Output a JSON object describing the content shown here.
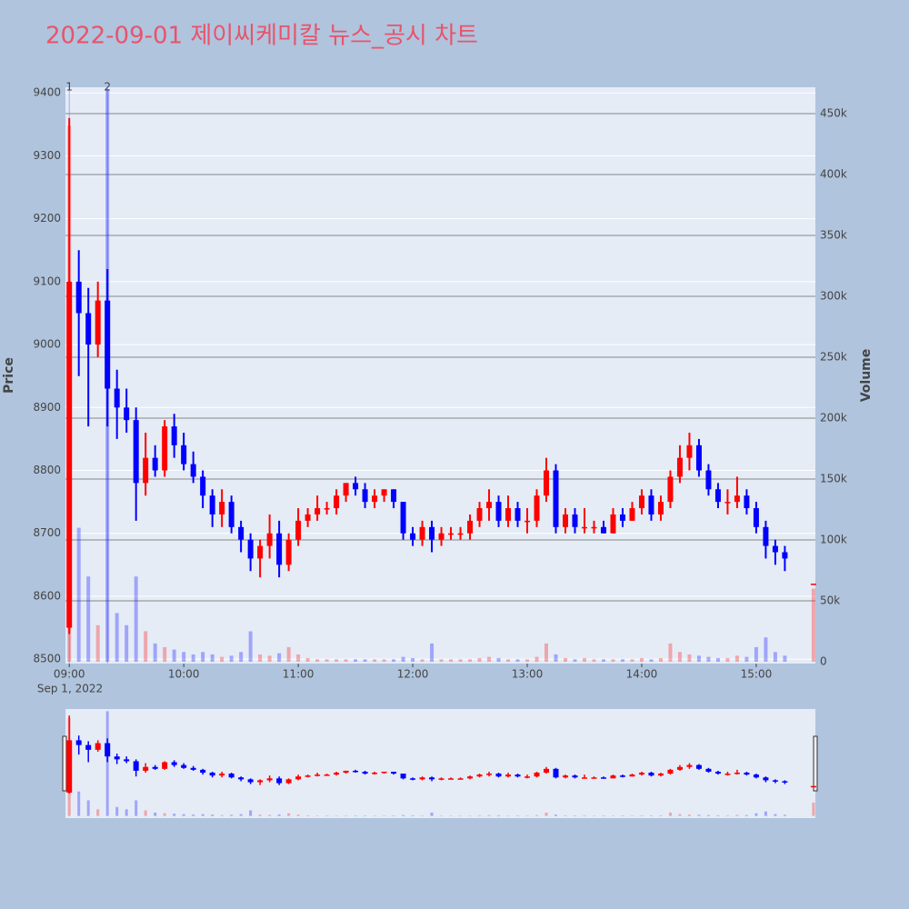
{
  "chart_data": {
    "type": "candlestick",
    "title": "2022-09-01 제이씨케미칼 뉴스_공시 차트",
    "y_label": "Price",
    "y2_label": "Volume",
    "x_date_label": "Sep 1, 2022",
    "increasing_color": "#ff0000",
    "decreasing_color": "#0000ff",
    "grid": true,
    "x": [
      "09:00",
      "09:05",
      "09:10",
      "09:15",
      "09:20",
      "09:25",
      "09:30",
      "09:35",
      "09:40",
      "09:45",
      "09:50",
      "09:55",
      "10:00",
      "10:05",
      "10:10",
      "10:15",
      "10:20",
      "10:25",
      "10:30",
      "10:35",
      "10:40",
      "10:45",
      "10:50",
      "10:55",
      "11:00",
      "11:05",
      "11:10",
      "11:15",
      "11:20",
      "11:25",
      "11:30",
      "11:35",
      "11:40",
      "11:45",
      "11:50",
      "11:55",
      "12:00",
      "12:05",
      "12:10",
      "12:15",
      "12:20",
      "12:25",
      "12:30",
      "12:35",
      "12:40",
      "12:45",
      "12:50",
      "12:55",
      "13:00",
      "13:05",
      "13:10",
      "13:15",
      "13:20",
      "13:25",
      "13:30",
      "13:35",
      "13:40",
      "13:45",
      "13:50",
      "13:55",
      "14:00",
      "14:05",
      "14:10",
      "14:15",
      "14:20",
      "14:25",
      "14:30",
      "14:35",
      "14:40",
      "14:45",
      "14:50",
      "14:55",
      "15:00",
      "15:05",
      "15:10",
      "15:15",
      "15:30"
    ],
    "open": [
      8550,
      9100,
      9050,
      9000,
      9070,
      8930,
      8900,
      8880,
      8780,
      8820,
      8800,
      8870,
      8840,
      8810,
      8790,
      8760,
      8730,
      8750,
      8710,
      8690,
      8660,
      8680,
      8700,
      8650,
      8690,
      8720,
      8730,
      8740,
      8740,
      8760,
      8780,
      8770,
      8750,
      8760,
      8770,
      8750,
      8700,
      8690,
      8710,
      8690,
      8700,
      8700,
      8700,
      8720,
      8740,
      8750,
      8720,
      8740,
      8720,
      8720,
      8760,
      8800,
      8710,
      8730,
      8710,
      8710,
      8710,
      8700,
      8730,
      8720,
      8740,
      8760,
      8730,
      8750,
      8790,
      8820,
      8840,
      8800,
      8770,
      8750,
      8750,
      8760,
      8740,
      8710,
      8680,
      8670,
      8620
    ],
    "high": [
      9360,
      9150,
      9090,
      9100,
      9120,
      8960,
      8930,
      8900,
      8860,
      8840,
      8880,
      8890,
      8860,
      8830,
      8800,
      8770,
      8770,
      8760,
      8720,
      8700,
      8690,
      8730,
      8720,
      8700,
      8740,
      8740,
      8760,
      8750,
      8770,
      8780,
      8790,
      8780,
      8770,
      8770,
      8770,
      8750,
      8710,
      8720,
      8720,
      8710,
      8710,
      8710,
      8730,
      8750,
      8770,
      8760,
      8760,
      8750,
      8740,
      8770,
      8820,
      8810,
      8740,
      8740,
      8740,
      8720,
      8720,
      8740,
      8740,
      8750,
      8770,
      8770,
      8760,
      8800,
      8840,
      8860,
      8850,
      8810,
      8780,
      8770,
      8790,
      8770,
      8750,
      8720,
      8690,
      8680,
      8620
    ],
    "low": [
      8540,
      8950,
      8870,
      8980,
      8870,
      8850,
      8860,
      8720,
      8760,
      8790,
      8790,
      8820,
      8800,
      8780,
      8740,
      8710,
      8710,
      8700,
      8670,
      8640,
      8630,
      8660,
      8630,
      8640,
      8680,
      8710,
      8720,
      8730,
      8730,
      8750,
      8760,
      8740,
      8740,
      8750,
      8740,
      8690,
      8680,
      8680,
      8670,
      8680,
      8690,
      8690,
      8690,
      8710,
      8720,
      8710,
      8710,
      8710,
      8700,
      8710,
      8750,
      8700,
      8700,
      8700,
      8700,
      8700,
      8700,
      8700,
      8710,
      8720,
      8730,
      8720,
      8720,
      8740,
      8780,
      8800,
      8790,
      8760,
      8740,
      8730,
      8740,
      8730,
      8700,
      8660,
      8650,
      8640,
      8620
    ],
    "close": [
      9100,
      9050,
      9000,
      9070,
      8930,
      8900,
      8880,
      8780,
      8820,
      8800,
      8870,
      8840,
      8810,
      8790,
      8760,
      8730,
      8750,
      8710,
      8690,
      8660,
      8680,
      8700,
      8650,
      8690,
      8720,
      8730,
      8740,
      8740,
      8760,
      8780,
      8770,
      8750,
      8760,
      8770,
      8750,
      8700,
      8690,
      8710,
      8690,
      8700,
      8700,
      8700,
      8720,
      8740,
      8750,
      8720,
      8740,
      8720,
      8720,
      8760,
      8800,
      8710,
      8730,
      8710,
      8710,
      8710,
      8700,
      8730,
      8720,
      8740,
      8760,
      8730,
      8750,
      8790,
      8820,
      8840,
      8800,
      8770,
      8750,
      8750,
      8760,
      8740,
      8710,
      8680,
      8670,
      8660,
      8620
    ],
    "volume": [
      440000,
      110000,
      70000,
      30000,
      470000,
      40000,
      30000,
      70000,
      25000,
      15000,
      12000,
      10000,
      8000,
      6000,
      8000,
      6000,
      4000,
      5000,
      8000,
      25000,
      6000,
      5000,
      7000,
      12000,
      6000,
      3000,
      2000,
      2000,
      2000,
      2000,
      2000,
      2000,
      2000,
      2000,
      2000,
      4000,
      3000,
      2000,
      15000,
      2000,
      2000,
      2000,
      2000,
      3000,
      4000,
      3000,
      2000,
      2000,
      2000,
      4000,
      15000,
      6000,
      3000,
      2000,
      3000,
      2000,
      2000,
      2000,
      2000,
      2000,
      3000,
      2000,
      3000,
      15000,
      8000,
      6000,
      5000,
      4000,
      3000,
      3000,
      5000,
      4000,
      12000,
      20000,
      8000,
      5000,
      60000
    ],
    "annotations": [
      {
        "x": "09:00",
        "text": "1"
      },
      {
        "x": "09:20",
        "text": "2"
      }
    ],
    "xlim": [
      "08:58",
      "15:31"
    ],
    "xticks": [
      "09:00",
      "10:00",
      "11:00",
      "12:00",
      "13:00",
      "14:00",
      "15:00"
    ],
    "ylim": [
      8493,
      9409
    ],
    "yticks": [
      8500,
      8600,
      8700,
      8800,
      8900,
      9000,
      9100,
      9200,
      9300,
      9400
    ],
    "y2lim": [
      -1500,
      471600
    ],
    "y2ticks": [
      {
        "value": 0,
        "label": "0"
      },
      {
        "value": 50000,
        "label": "50k"
      },
      {
        "value": 100000,
        "label": "100k"
      },
      {
        "value": 150000,
        "label": "150k"
      },
      {
        "value": 200000,
        "label": "200k"
      },
      {
        "value": 250000,
        "label": "250k"
      },
      {
        "value": 300000,
        "label": "300k"
      },
      {
        "value": 350000,
        "label": "350k"
      },
      {
        "value": 400000,
        "label": "400k"
      },
      {
        "value": 450000,
        "label": "450k"
      }
    ]
  }
}
